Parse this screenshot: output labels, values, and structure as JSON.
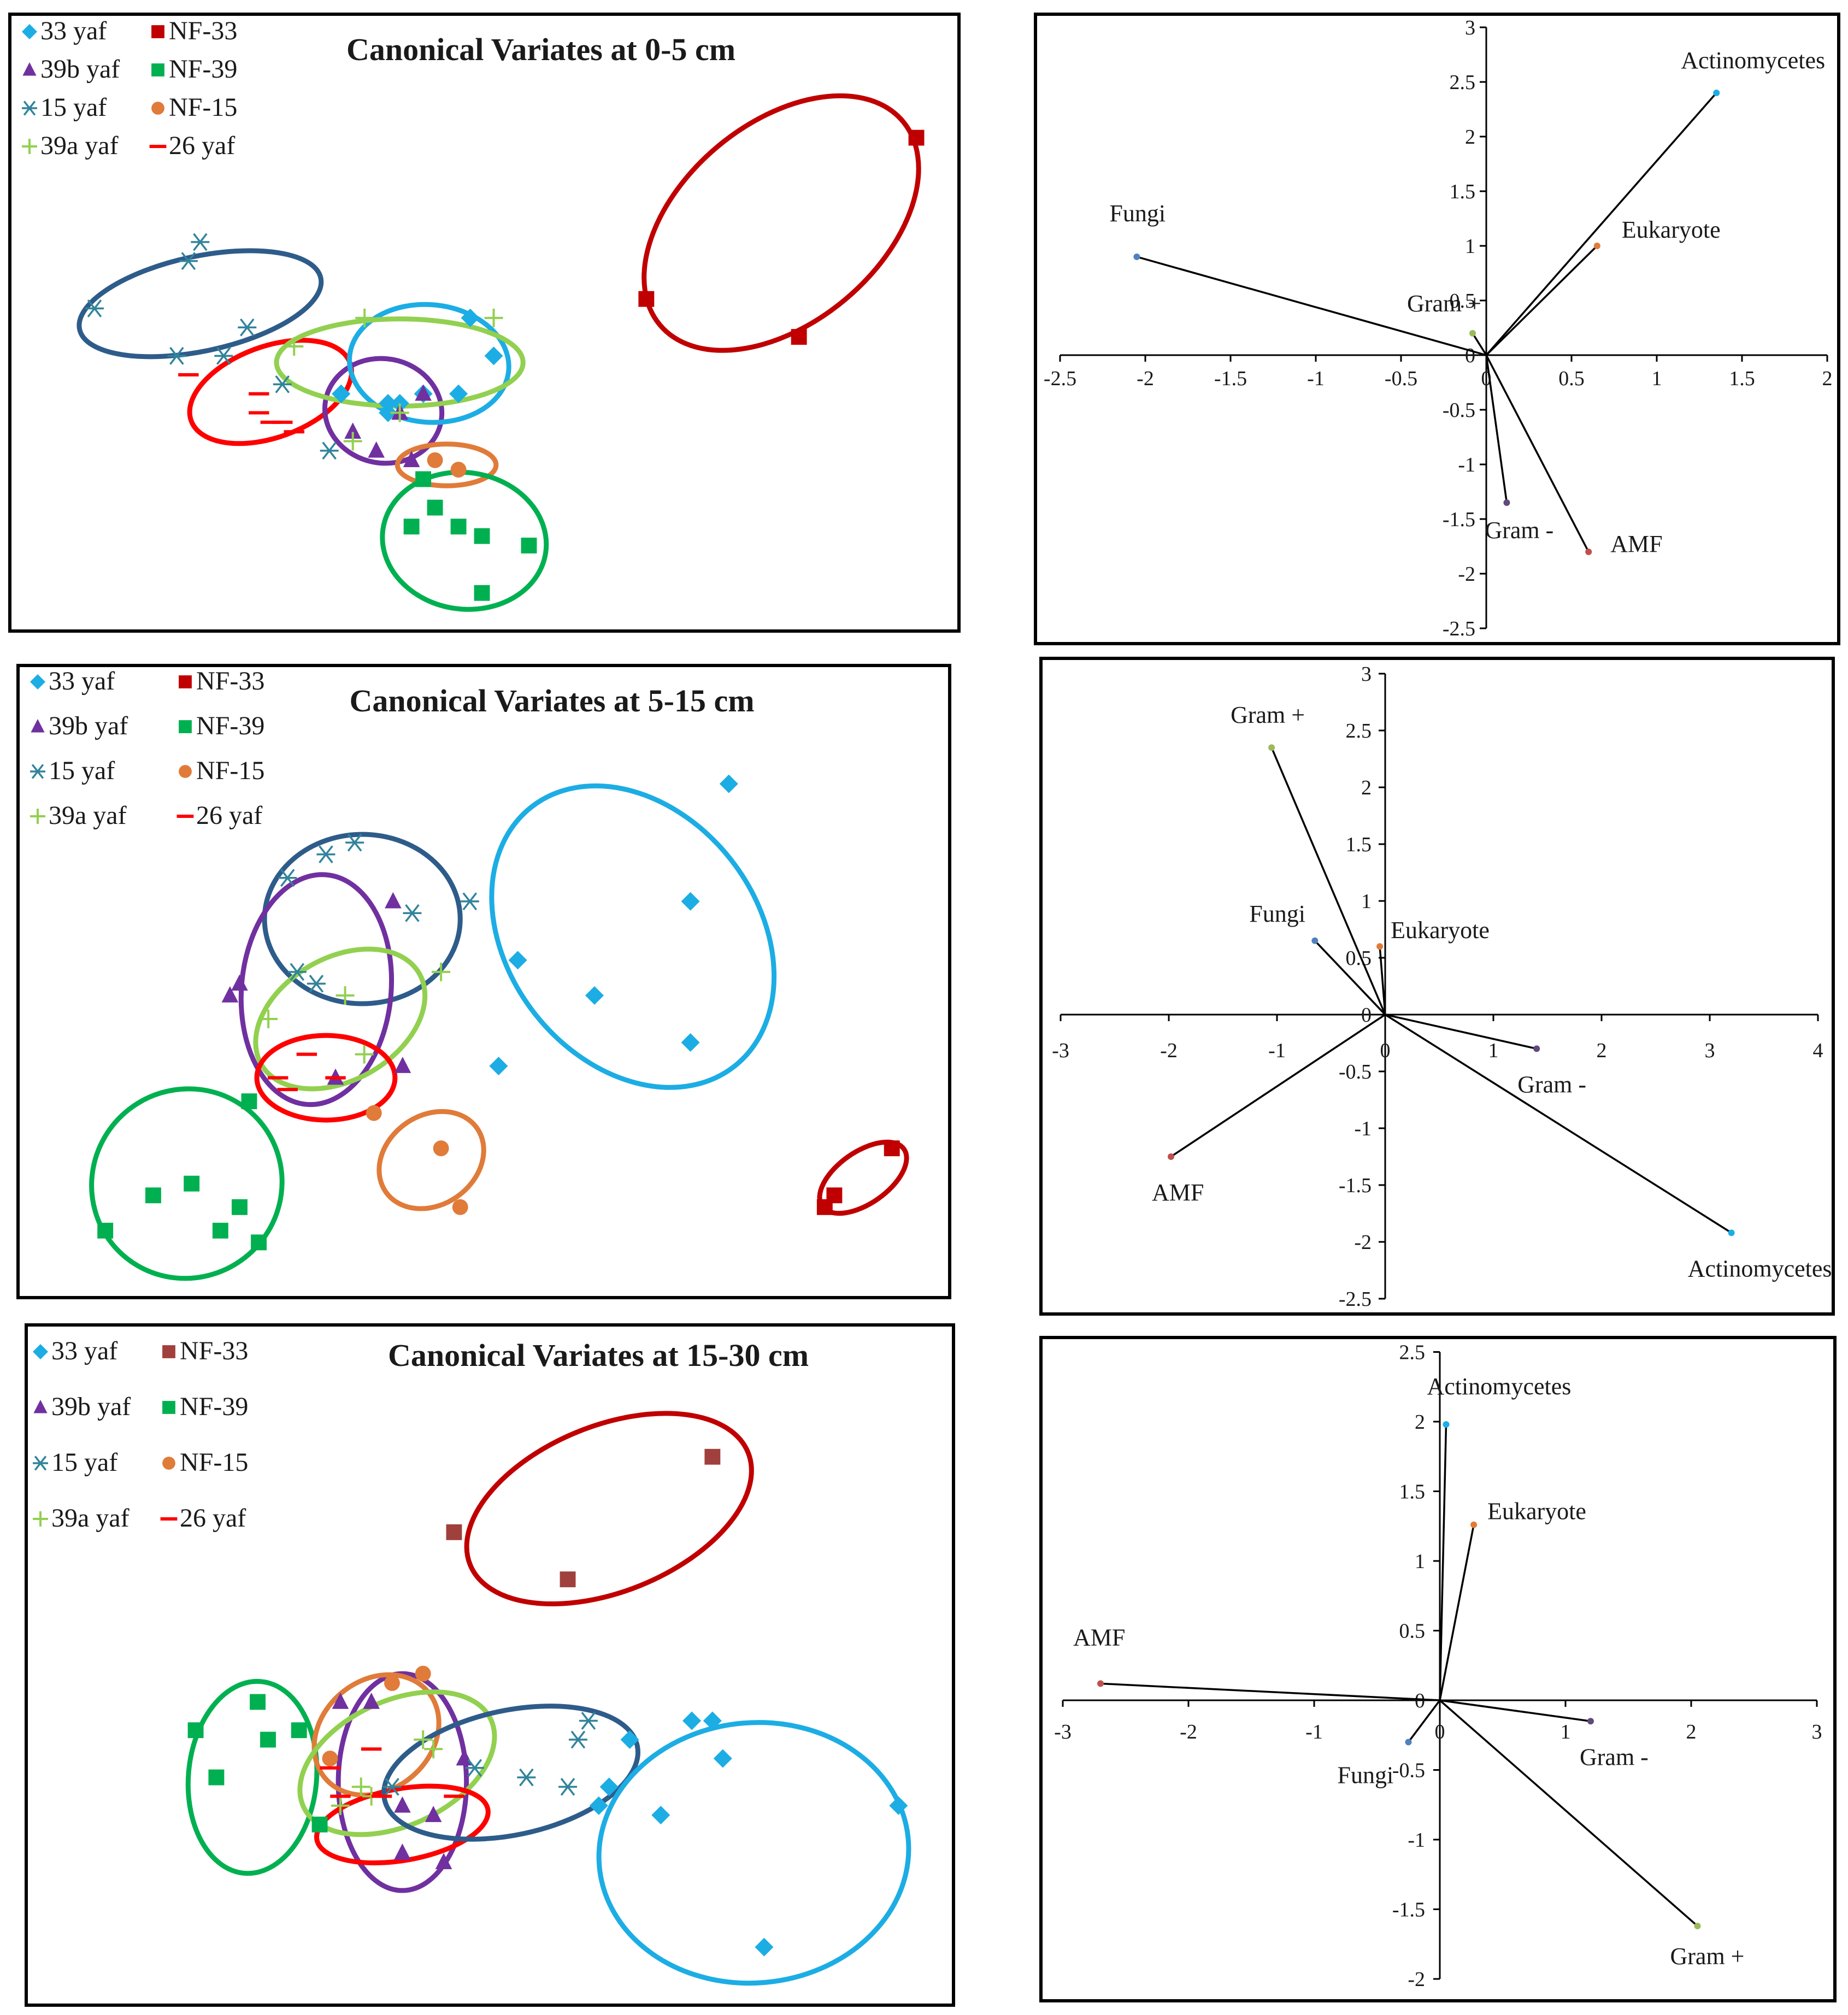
{
  "chart_data": [
    {
      "type": "scatter",
      "title": "Canonical Variates at 0-5 cm",
      "legend": [
        "33 yaf",
        "NF-33",
        "39b yaf",
        "NF-39",
        "15 yaf",
        "NF-15",
        "39a yaf",
        "26 yaf"
      ],
      "series": [
        {
          "name": "33 yaf",
          "marker": "diamond",
          "color": "#1CADE4",
          "x": [
            3.1,
            3.5,
            3.6,
            3.1,
            3.8,
            4.2,
            4.4,
            4.1,
            3.5
          ],
          "y": [
            4.6,
            4.4,
            4.5,
            4.6,
            4.6,
            5.4,
            5.0,
            4.6,
            4.5
          ]
        },
        {
          "name": "NF-33",
          "marker": "square",
          "color": "#C00000",
          "x": [
            5.7,
            7.0,
            8.0
          ],
          "y": [
            5.6,
            5.2,
            7.3
          ]
        },
        {
          "name": "39b yaf",
          "marker": "triangle",
          "color": "#7030A0",
          "x": [
            3.2,
            3.4,
            3.7,
            3.8,
            3.6
          ],
          "y": [
            4.2,
            4.0,
            3.9,
            4.6,
            4.4
          ]
        },
        {
          "name": "NF-39",
          "marker": "square",
          "color": "#00B050",
          "x": [
            3.7,
            3.8,
            3.9,
            4.1,
            4.3,
            4.3,
            4.7
          ],
          "y": [
            3.2,
            3.7,
            3.4,
            3.2,
            3.1,
            2.5,
            3.0
          ]
        },
        {
          "name": "15 yaf",
          "marker": "asterisk",
          "color": "#31849B",
          "x": [
            1.0,
            1.8,
            1.9,
            1.7,
            2.1,
            2.3,
            2.6,
            3.0
          ],
          "y": [
            5.5,
            6.0,
            6.2,
            5.0,
            5.0,
            5.3,
            4.7,
            4.0
          ]
        },
        {
          "name": "NF-15",
          "marker": "circle",
          "color": "#E07B39",
          "x": [
            3.9,
            4.1
          ],
          "y": [
            3.9,
            3.8
          ]
        },
        {
          "name": "39a yaf",
          "marker": "plus",
          "color": "#92D050",
          "x": [
            2.7,
            3.3,
            3.6,
            4.4,
            3.2
          ],
          "y": [
            5.1,
            5.4,
            4.4,
            5.4,
            4.1
          ]
        },
        {
          "name": "26 yaf",
          "marker": "dash",
          "color": "#FF0000",
          "x": [
            1.8,
            2.4,
            2.4,
            2.5,
            2.6,
            2.7
          ],
          "y": [
            4.8,
            4.6,
            4.4,
            4.3,
            4.3,
            4.2
          ]
        }
      ],
      "ellipses": [
        {
          "group": "15 yaf",
          "color": "#2E5C8A"
        },
        {
          "group": "26 yaf",
          "color": "#FF0000"
        },
        {
          "group": "39b yaf",
          "color": "#7030A0"
        },
        {
          "group": "33 yaf",
          "color": "#1CADE4"
        },
        {
          "group": "39a yaf",
          "color": "#92D050"
        },
        {
          "group": "NF-15",
          "color": "#E07B39"
        },
        {
          "group": "NF-39",
          "color": "#00B050"
        },
        {
          "group": "NF-33",
          "color": "#C00000"
        }
      ]
    },
    {
      "type": "vector",
      "xlim": [
        -2.5,
        2
      ],
      "ylim": [
        -2.5,
        3
      ],
      "xticks": [
        -2.5,
        -2,
        -1.5,
        -1,
        -0.5,
        0,
        0.5,
        1,
        1.5,
        2
      ],
      "yticks": [
        -2.5,
        -2,
        -1.5,
        -1,
        -0.5,
        0,
        0.5,
        1,
        1.5,
        2,
        2.5,
        3
      ],
      "vectors": [
        {
          "name": "Actinomycetes",
          "x": 1.35,
          "y": 2.4,
          "color": "#1CADE4"
        },
        {
          "name": "Eukaryote",
          "x": 0.65,
          "y": 1.0,
          "color": "#E07B39"
        },
        {
          "name": "Fungi",
          "x": -2.05,
          "y": 0.9,
          "color": "#4F81BD"
        },
        {
          "name": "Gram +",
          "x": -0.08,
          "y": 0.2,
          "color": "#9BBB59"
        },
        {
          "name": "Gram -",
          "x": 0.12,
          "y": -1.35,
          "color": "#604A7B"
        },
        {
          "name": "AMF",
          "x": 0.6,
          "y": -1.8,
          "color": "#C0504D"
        }
      ]
    },
    {
      "type": "scatter",
      "title": "Canonical Variates at 5-15 cm",
      "legend": [
        "33 yaf",
        "NF-33",
        "39b yaf",
        "NF-39",
        "15 yaf",
        "NF-15",
        "39a yaf",
        "26 yaf"
      ],
      "series": [
        {
          "name": "33 yaf",
          "marker": "diamond",
          "color": "#1CADE4",
          "x": [
            5.2,
            5.4,
            6.2,
            7.2,
            7.2,
            7.6
          ],
          "y": [
            4.1,
            5.0,
            4.7,
            4.3,
            5.5,
            6.5
          ]
        },
        {
          "name": "NF-33",
          "marker": "square",
          "color": "#C00000",
          "x": [
            8.6,
            8.7,
            9.3
          ],
          "y": [
            2.9,
            3.0,
            3.4
          ]
        },
        {
          "name": "39b yaf",
          "marker": "triangle",
          "color": "#7030A0",
          "x": [
            2.4,
            2.5,
            3.5,
            4.1,
            4.2
          ],
          "y": [
            4.7,
            4.8,
            4.0,
            5.5,
            4.1
          ]
        },
        {
          "name": "NF-39",
          "marker": "square",
          "color": "#00B050",
          "x": [
            1.1,
            1.6,
            2.0,
            2.3,
            2.5,
            2.7,
            2.6
          ],
          "y": [
            2.7,
            3.0,
            3.1,
            2.7,
            2.9,
            2.6,
            3.8
          ]
        },
        {
          "name": "15 yaf",
          "marker": "asterisk",
          "color": "#31849B",
          "x": [
            3.0,
            3.4,
            3.7,
            3.1,
            3.3,
            4.3,
            4.9
          ],
          "y": [
            5.7,
            5.9,
            6.0,
            4.9,
            4.8,
            5.4,
            5.5
          ]
        },
        {
          "name": "NF-15",
          "marker": "circle",
          "color": "#E07B39",
          "x": [
            3.9,
            4.6,
            4.8
          ],
          "y": [
            3.7,
            3.4,
            2.9
          ]
        },
        {
          "name": "39a yaf",
          "marker": "plus",
          "color": "#92D050",
          "x": [
            2.8,
            3.6,
            4.6,
            3.8
          ],
          "y": [
            4.5,
            4.7,
            4.9,
            4.2
          ]
        },
        {
          "name": "26 yaf",
          "marker": "dash",
          "color": "#FF0000",
          "x": [
            2.9,
            3.2,
            3.0,
            3.5
          ],
          "y": [
            4.0,
            4.2,
            3.9,
            4.0
          ]
        }
      ],
      "ellipses": [
        {
          "group": "15 yaf",
          "color": "#2E5C8A"
        },
        {
          "group": "39b yaf",
          "color": "#7030A0"
        },
        {
          "group": "39a yaf",
          "color": "#92D050"
        },
        {
          "group": "26 yaf",
          "color": "#FF0000"
        },
        {
          "group": "33 yaf",
          "color": "#1CADE4"
        },
        {
          "group": "NF-39",
          "color": "#00B050"
        },
        {
          "group": "NF-15",
          "color": "#E07B39"
        },
        {
          "group": "NF-33",
          "color": "#C00000"
        }
      ]
    },
    {
      "type": "vector",
      "xlim": [
        -3,
        4
      ],
      "ylim": [
        -2.5,
        3
      ],
      "xticks": [
        -3,
        -2,
        -1,
        0,
        1,
        2,
        3,
        4
      ],
      "yticks": [
        -2.5,
        -2,
        -1.5,
        -1,
        -0.5,
        0,
        0.5,
        1,
        1.5,
        2,
        2.5,
        3
      ],
      "vectors": [
        {
          "name": "Gram +",
          "x": -1.05,
          "y": 2.35,
          "color": "#9BBB59"
        },
        {
          "name": "Fungi",
          "x": -0.65,
          "y": 0.65,
          "color": "#4F81BD"
        },
        {
          "name": "Eukaryote",
          "x": -0.05,
          "y": 0.6,
          "color": "#E07B39"
        },
        {
          "name": "Gram -",
          "x": 1.4,
          "y": -0.3,
          "color": "#604A7B"
        },
        {
          "name": "AMF",
          "x": -1.98,
          "y": -1.25,
          "color": "#C0504D"
        },
        {
          "name": "Actinomycetes",
          "x": 3.2,
          "y": -1.92,
          "color": "#1CADE4"
        }
      ]
    },
    {
      "type": "scatter",
      "title": "Canonical Variates at 15-30 cm",
      "legend": [
        "33 yaf",
        "NF-33",
        "39b yaf",
        "NF-39",
        "15 yaf",
        "NF-15",
        "39a yaf",
        "26 yaf"
      ],
      "series": [
        {
          "name": "33 yaf",
          "marker": "diamond",
          "color": "#1CADE4",
          "x": [
            6.5,
            6.6,
            6.8,
            7.1,
            7.4,
            7.6,
            7.7,
            8.1,
            9.4
          ],
          "y": [
            4.4,
            4.6,
            5.1,
            4.3,
            5.3,
            5.3,
            4.9,
            2.9,
            4.4
          ]
        },
        {
          "name": "NF-33",
          "marker": "square",
          "color": "#A0403C",
          "x": [
            5.1,
            6.2,
            7.6
          ],
          "y": [
            7.3,
            6.8,
            8.1
          ]
        },
        {
          "name": "39b yaf",
          "marker": "triangle",
          "color": "#7030A0",
          "x": [
            4.0,
            4.3,
            4.6,
            4.9,
            5.0,
            5.2,
            4.6
          ],
          "y": [
            5.5,
            5.5,
            4.4,
            4.3,
            3.8,
            4.9,
            3.9
          ]
        },
        {
          "name": "NF-39",
          "marker": "square",
          "color": "#00B050",
          "x": [
            2.6,
            2.8,
            3.2,
            3.3,
            3.6,
            3.8
          ],
          "y": [
            5.2,
            4.7,
            5.5,
            5.1,
            5.2,
            4.2
          ]
        },
        {
          "name": "15 yaf",
          "marker": "asterisk",
          "color": "#31849B",
          "x": [
            4.5,
            5.3,
            5.8,
            6.3,
            6.4,
            6.2
          ],
          "y": [
            4.6,
            4.8,
            4.7,
            5.1,
            5.3,
            4.6
          ]
        },
        {
          "name": "NF-15",
          "marker": "circle",
          "color": "#E07B39",
          "x": [
            4.5,
            4.8,
            3.9
          ],
          "y": [
            5.7,
            5.8,
            4.9
          ]
        },
        {
          "name": "39a yaf",
          "marker": "plus",
          "color": "#92D050",
          "x": [
            4.8,
            4.9,
            4.2,
            4.3,
            4.0
          ],
          "y": [
            5.1,
            5.0,
            4.6,
            4.5,
            4.4
          ]
        },
        {
          "name": "26 yaf",
          "marker": "dash",
          "color": "#FF0000",
          "x": [
            3.9,
            4.3,
            4.4,
            4.8,
            5.1,
            4.0
          ],
          "y": [
            4.8,
            5.0,
            4.5,
            4.6,
            4.5,
            4.5
          ]
        }
      ],
      "ellipses": [
        {
          "group": "NF-33",
          "color": "#C00000"
        },
        {
          "group": "NF-39",
          "color": "#00B050"
        },
        {
          "group": "39b yaf",
          "color": "#7030A0"
        },
        {
          "group": "NF-15",
          "color": "#E07B39"
        },
        {
          "group": "39a yaf",
          "color": "#92D050"
        },
        {
          "group": "26 yaf",
          "color": "#FF0000"
        },
        {
          "group": "15 yaf",
          "color": "#2E5C8A"
        },
        {
          "group": "33 yaf",
          "color": "#1CADE4"
        }
      ]
    },
    {
      "type": "vector",
      "xlim": [
        -3,
        3
      ],
      "ylim": [
        -2,
        2.5
      ],
      "xticks": [
        -3,
        -2,
        -1,
        0,
        1,
        2,
        3
      ],
      "yticks": [
        -2,
        -1.5,
        -1,
        -0.5,
        0,
        0.5,
        1,
        1.5,
        2,
        2.5
      ],
      "vectors": [
        {
          "name": "Actinomycetes",
          "x": 0.05,
          "y": 1.98,
          "color": "#1CADE4"
        },
        {
          "name": "Eukaryote",
          "x": 0.27,
          "y": 1.26,
          "color": "#E07B39"
        },
        {
          "name": "AMF",
          "x": -2.7,
          "y": 0.12,
          "color": "#C0504D"
        },
        {
          "name": "Fungi",
          "x": -0.25,
          "y": -0.3,
          "color": "#4F81BD"
        },
        {
          "name": "Gram -",
          "x": 1.2,
          "y": -0.15,
          "color": "#604A7B"
        },
        {
          "name": "Gram +",
          "x": 2.05,
          "y": -1.62,
          "color": "#9BBB59"
        }
      ]
    }
  ]
}
